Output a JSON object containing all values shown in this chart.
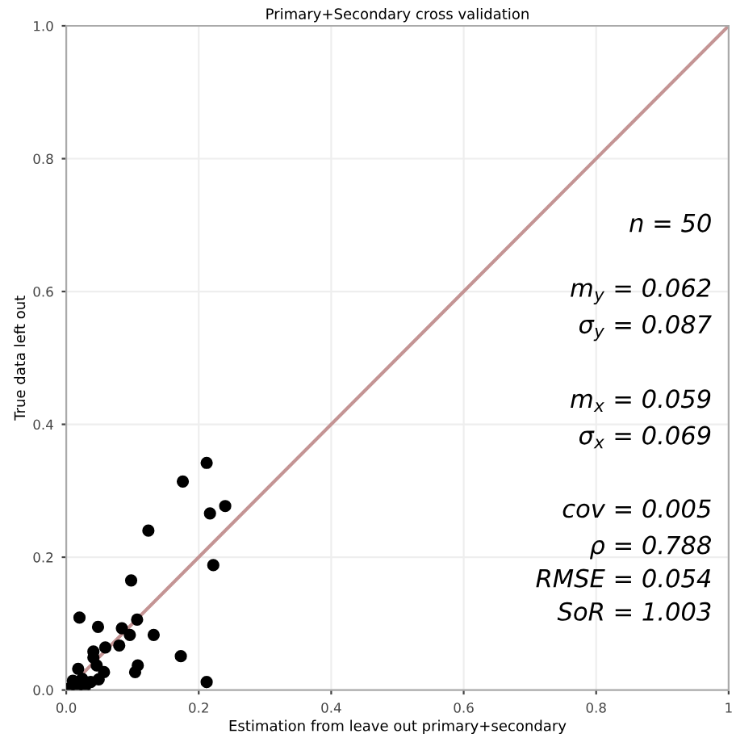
{
  "chart_data": {
    "type": "scatter",
    "title": "Primary+Secondary cross validation",
    "xlabel": "Estimation from leave out primary+secondary",
    "ylabel": "True data left out",
    "xlim": [
      0.0,
      1
    ],
    "ylim": [
      0.0,
      1.0
    ],
    "xticks": [
      {
        "value": 0,
        "label": "0.0"
      },
      0.2,
      0.4,
      0.6,
      0.8,
      1
    ],
    "yticks": [
      {
        "value": 0,
        "label": "0.0"
      },
      0.2,
      0.4,
      0.6,
      0.8,
      {
        "value": 1,
        "label": "1.0"
      }
    ],
    "grid": true,
    "series": [
      {
        "color": "#000000",
        "marker": "circle",
        "x": [
          0.212,
          0.176,
          0.24,
          0.217,
          0.124,
          0.222,
          0.098,
          0.02,
          0.048,
          0.084,
          0.107,
          0.096,
          0.132,
          0.059,
          0.08,
          0.041,
          0.041,
          0.173,
          0.108,
          0.104,
          0.046,
          0.057,
          0.049,
          0.018,
          0.212,
          0.004,
          0.016,
          0.028,
          0.01,
          0.024,
          0.037
        ],
        "values": [
          0.342,
          0.314,
          0.277,
          0.266,
          0.24,
          0.188,
          0.165,
          0.109,
          0.095,
          0.093,
          0.106,
          0.083,
          0.083,
          0.064,
          0.067,
          0.058,
          0.049,
          0.051,
          0.037,
          0.027,
          0.037,
          0.027,
          0.016,
          0.032,
          0.012,
          0.002,
          0.003,
          0.004,
          0.014,
          0.017,
          0.012
        ]
      },
      {
        "type": "line",
        "color": "#c49494",
        "x": [
          0.0,
          1.0
        ],
        "values": [
          0.0,
          1.0
        ]
      }
    ],
    "annotations": [
      "n = 50",
      "m$_{y}$ = 0.062",
      "σ$_{y}$ = 0.087",
      "m$_{x}$ = 0.059",
      "σ$_{x}$ = 0.069",
      "cov = 0.005",
      "ρ = 0.788",
      "RMSE = 0.054",
      "SoR = 1.003"
    ]
  }
}
